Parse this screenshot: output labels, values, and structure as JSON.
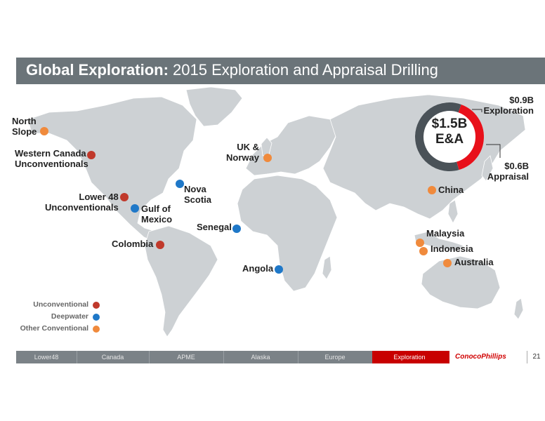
{
  "title": {
    "bold": "Global Exploration:",
    "rest": " 2015 Exploration and Appraisal Drilling"
  },
  "colors": {
    "unconventional": "#c0392b",
    "deepwater": "#1f78c8",
    "other_conventional": "#f08a3c",
    "header": "#6b7479",
    "active_tab": "#c80000",
    "ring_gray": "#4a5258",
    "ring_red": "#e8101a"
  },
  "summary": {
    "total": "$1.5B",
    "total_sub": "E&A",
    "exploration_value": "$0.9B",
    "exploration_label": "Exploration",
    "appraisal_value": "$0.6B",
    "appraisal_label": "Appraisal",
    "exploration_amount": 0.9,
    "appraisal_amount": 0.6
  },
  "locations": {
    "north_slope": "North\nSlope",
    "western_canada": "Western Canada\nUnconventionals",
    "lower48": "Lower 48\nUnconventionals",
    "gulf_of_mexico": "Gulf of\nMexico",
    "nova_scotia": "Nova\nScotia",
    "colombia": "Colombia",
    "senegal": "Senegal",
    "angola": "Angola",
    "uk_norway": "UK &\nNorway",
    "china": "China",
    "malaysia": "Malaysia",
    "indonesia": "Indonesia",
    "australia": "Australia"
  },
  "legend": {
    "unconventional": "Unconventional",
    "deepwater": "Deepwater",
    "other_conventional": "Other Conventional"
  },
  "nav": {
    "tabs": [
      "Lower48",
      "Canada",
      "APME",
      "Alaska",
      "Europe",
      "Exploration"
    ],
    "active": "Exploration"
  },
  "logo": "ConocoPhillips",
  "page_number": "21"
}
